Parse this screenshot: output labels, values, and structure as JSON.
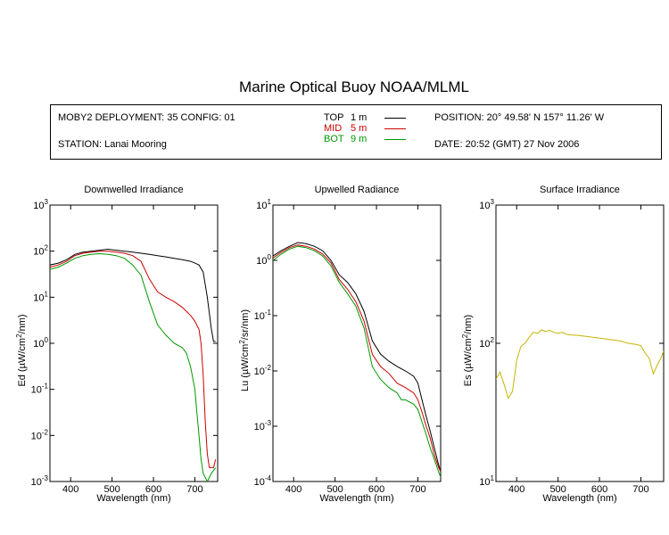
{
  "title": "Marine Optical Buoy NOAA/MLML",
  "info": {
    "deployment": "MOBY2 DEPLOYMENT: 35 CONFIG: 01",
    "station": "STATION: Lanai Mooring",
    "position": "POSITION: 20° 49.58' N   157° 11.26' W",
    "date": "DATE: 20:52 (GMT) 27 Nov 2006"
  },
  "legend": [
    {
      "name": "TOP",
      "depth": "1  m",
      "color": "#000000"
    },
    {
      "name": "MID",
      "depth": "5  m",
      "color": "#cc0000"
    },
    {
      "name": "BOT",
      "depth": "9  m",
      "color": "#009900"
    }
  ],
  "chart_data": [
    {
      "type": "line",
      "title": "Downwelled Irradiance",
      "xlabel": "Wavelength (nm)",
      "ylabel_main": "Ed  (µW/cm",
      "ylabel_sup": "2",
      "ylabel_tail": "/nm)",
      "xlim": [
        350,
        755
      ],
      "xticks": [
        "400",
        "500",
        "600",
        "700"
      ],
      "ylim_log10": [
        -3,
        3
      ],
      "ytick_base": "10",
      "yticks": [
        "-3",
        "-2",
        "-1",
        "0",
        "1",
        "2",
        "3"
      ],
      "log_y": true,
      "series": [
        {
          "name": "TOP",
          "color": "#000000",
          "x": [
            350,
            370,
            390,
            410,
            430,
            450,
            470,
            490,
            510,
            530,
            550,
            570,
            590,
            610,
            630,
            650,
            670,
            690,
            700,
            710,
            720,
            730,
            740,
            745,
            750
          ],
          "y": [
            50,
            55,
            65,
            85,
            95,
            100,
            105,
            110,
            105,
            100,
            95,
            90,
            85,
            80,
            75,
            70,
            65,
            60,
            55,
            50,
            35,
            10,
            2,
            1.1,
            1.1
          ]
        },
        {
          "name": "MID",
          "color": "#cc0000",
          "x": [
            350,
            370,
            390,
            410,
            430,
            450,
            470,
            490,
            510,
            530,
            550,
            570,
            590,
            610,
            630,
            650,
            670,
            690,
            700,
            710,
            715,
            720,
            725,
            730,
            735,
            740,
            745,
            750
          ],
          "y": [
            45,
            50,
            60,
            80,
            90,
            95,
            100,
            100,
            95,
            90,
            80,
            60,
            25,
            13,
            10,
            8,
            6,
            4,
            3,
            2,
            1,
            0.2,
            0.02,
            0.004,
            0.002,
            0.002,
            0.002,
            0.003
          ]
        },
        {
          "name": "BOT",
          "color": "#009900",
          "x": [
            350,
            370,
            390,
            410,
            430,
            450,
            470,
            490,
            510,
            530,
            550,
            570,
            590,
            610,
            630,
            650,
            670,
            680,
            690,
            700,
            705,
            710,
            715,
            720,
            730,
            740,
            750
          ],
          "y": [
            40,
            45,
            55,
            70,
            80,
            85,
            88,
            85,
            80,
            70,
            50,
            30,
            8,
            2.5,
            1.5,
            1,
            0.8,
            0.6,
            0.3,
            0.1,
            0.03,
            0.01,
            0.003,
            0.0015,
            0.001,
            0.0015,
            0.002
          ]
        }
      ]
    },
    {
      "type": "line",
      "title": "Upwelled Radiance",
      "xlabel": "Wavelength (nm)",
      "ylabel_main": "Lu  (µW/cm",
      "ylabel_sup": "2",
      "ylabel_tail": "/sr/nm)",
      "xlim": [
        350,
        755
      ],
      "xticks": [
        "400",
        "500",
        "600",
        "700"
      ],
      "ylim_log10": [
        -4,
        1
      ],
      "ytick_base": "10",
      "yticks": [
        "-4",
        "-3",
        "-2",
        "-1",
        "0",
        "1"
      ],
      "log_y": true,
      "series": [
        {
          "name": "TOP",
          "color": "#000000",
          "x": [
            350,
            370,
            390,
            410,
            430,
            450,
            470,
            490,
            510,
            530,
            550,
            570,
            590,
            610,
            630,
            650,
            670,
            690,
            700,
            710,
            720,
            730,
            740,
            750,
            755
          ],
          "y": [
            1.2,
            1.5,
            1.8,
            2.1,
            2.0,
            1.8,
            1.5,
            1.0,
            0.55,
            0.4,
            0.25,
            0.12,
            0.035,
            0.02,
            0.015,
            0.012,
            0.01,
            0.008,
            0.006,
            0.003,
            0.0015,
            0.0008,
            0.0004,
            0.0002,
            0.00015
          ]
        },
        {
          "name": "MID",
          "color": "#cc0000",
          "x": [
            350,
            370,
            390,
            410,
            430,
            450,
            470,
            490,
            510,
            530,
            550,
            570,
            590,
            610,
            630,
            650,
            670,
            690,
            700,
            710,
            720,
            730,
            740,
            750,
            755
          ],
          "y": [
            1.1,
            1.4,
            1.7,
            1.9,
            1.8,
            1.6,
            1.3,
            0.9,
            0.45,
            0.3,
            0.18,
            0.08,
            0.02,
            0.012,
            0.009,
            0.006,
            0.005,
            0.004,
            0.003,
            0.0018,
            0.001,
            0.0006,
            0.0003,
            0.00018,
            0.00015
          ]
        },
        {
          "name": "BOT",
          "color": "#009900",
          "x": [
            350,
            370,
            390,
            410,
            430,
            450,
            470,
            490,
            510,
            530,
            550,
            570,
            590,
            610,
            630,
            650,
            660,
            670,
            690,
            700,
            710,
            720,
            730,
            740,
            750,
            755
          ],
          "y": [
            1.0,
            1.3,
            1.6,
            1.8,
            1.7,
            1.5,
            1.2,
            0.8,
            0.4,
            0.25,
            0.15,
            0.06,
            0.012,
            0.007,
            0.005,
            0.004,
            0.003,
            0.003,
            0.0025,
            0.002,
            0.0012,
            0.0007,
            0.0004,
            0.00025,
            0.00015,
            0.00012
          ]
        }
      ]
    },
    {
      "type": "line",
      "title": "Surface Irradiance",
      "xlabel": "Wavelength (nm)",
      "ylabel_main": "Es  (µW/cm",
      "ylabel_sup": "2",
      "ylabel_tail": "/nm)",
      "xlim": [
        350,
        755
      ],
      "xticks": [
        "400",
        "500",
        "600",
        "700"
      ],
      "ylim_log10": [
        1,
        3
      ],
      "ytick_base": "10",
      "yticks": [
        "1",
        "2",
        "3"
      ],
      "log_y": true,
      "series": [
        {
          "name": "Surface",
          "color": "#c8b400",
          "x": [
            350,
            360,
            370,
            380,
            390,
            400,
            410,
            420,
            430,
            440,
            450,
            460,
            470,
            480,
            490,
            500,
            510,
            520,
            530,
            550,
            570,
            590,
            610,
            630,
            650,
            670,
            690,
            700,
            710,
            720,
            730,
            740,
            750,
            755
          ],
          "y": [
            55,
            62,
            50,
            40,
            45,
            75,
            95,
            100,
            110,
            120,
            118,
            125,
            122,
            124,
            120,
            118,
            120,
            116,
            115,
            114,
            112,
            110,
            108,
            106,
            104,
            100,
            98,
            96,
            85,
            78,
            60,
            70,
            80,
            88
          ]
        }
      ]
    }
  ]
}
